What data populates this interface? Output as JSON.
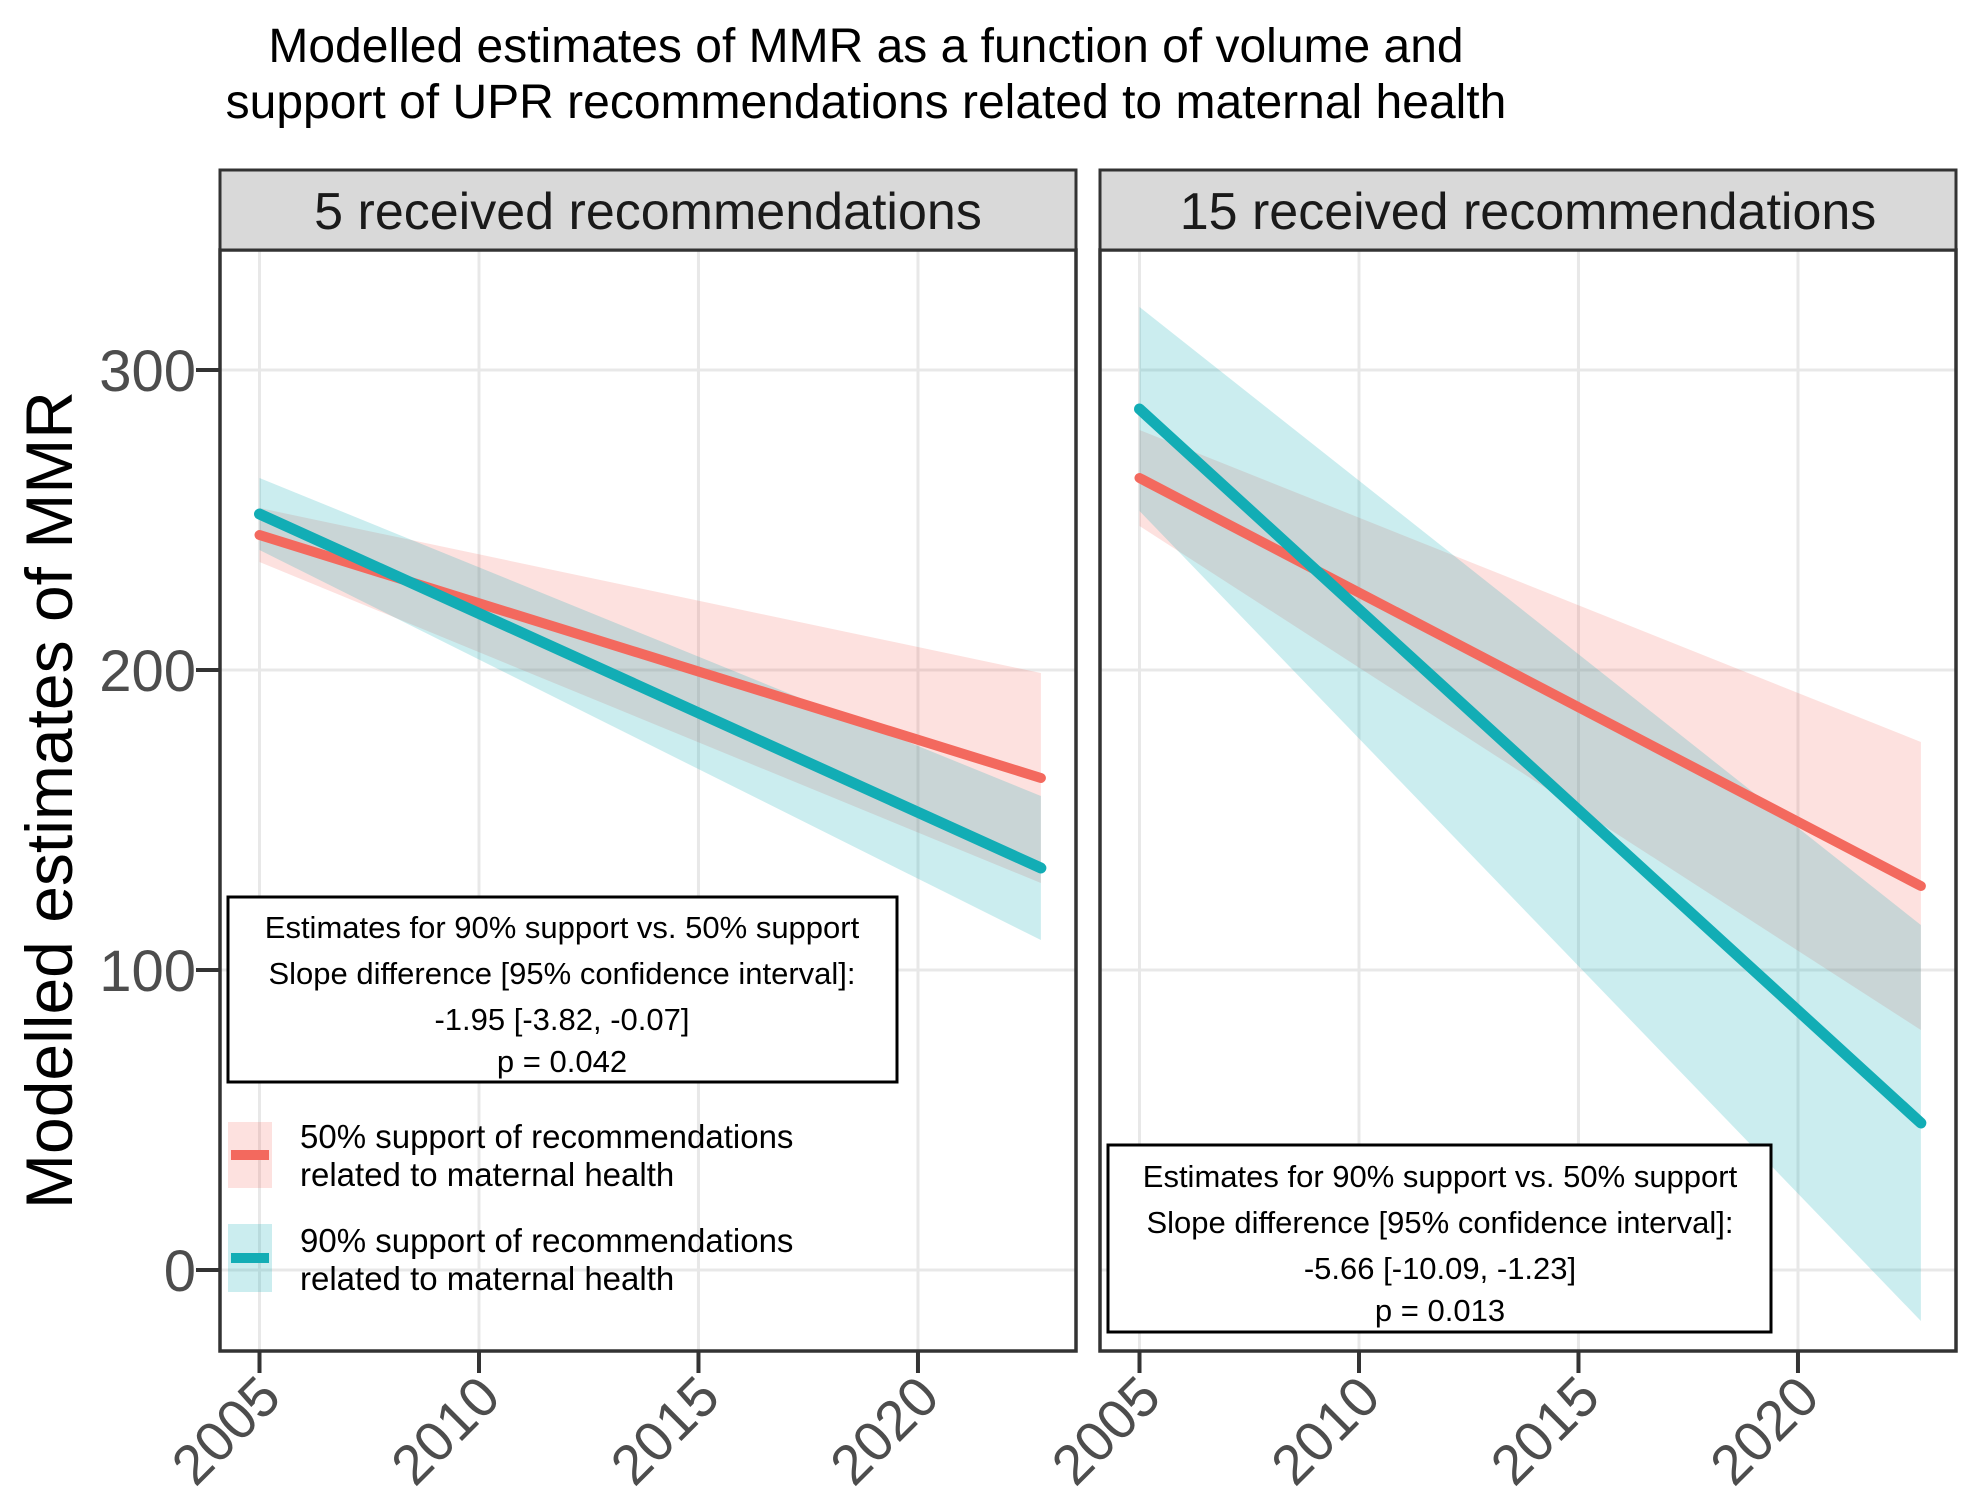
{
  "chart_data": {
    "type": "line",
    "title_line1": "Modelled estimates of MMR as a function of volume and",
    "title_line2": "support of UPR recommendations related to maternal health",
    "ylabel": "Modelled estimates of MMR",
    "xlabel": "",
    "x_tick_years": [
      2005,
      2010,
      2015,
      2020
    ],
    "x_tick_labels": [
      "2005",
      "2010",
      "2015",
      "2020"
    ],
    "y_tick_values": [
      0,
      100,
      200,
      300
    ],
    "y_tick_labels": [
      "0",
      "100",
      "200",
      "300"
    ],
    "x_domain": [
      2004.1,
      2023.6
    ],
    "y_domain": [
      -27,
      340
    ],
    "grid": true,
    "legend_position": "inside-bottom-left-of-first-panel",
    "theme": {
      "background": "#FFFFFF",
      "strip_bg": "#D9D9D9",
      "grid_color": "#E8E8E8",
      "panel_border": "#333333",
      "tick_color": "#333333",
      "axis_text_color": "#4D4D4D",
      "red": "#F3695E",
      "teal": "#12ADB5"
    },
    "panels": [
      {
        "strip_label": "5 received recommendations",
        "series": [
          {
            "name": "50% support of recommendations related to maternal health",
            "color": "#F3695E",
            "fill": "rgba(243,105,94,0.20)",
            "x": [
              2005,
              2022.8
            ],
            "y": [
              245,
              164
            ],
            "ci_upper": [
              254,
              199
            ],
            "ci_lower": [
              236,
              129
            ]
          },
          {
            "name": "90% support of recommendations related to maternal health",
            "color": "#12ADB5",
            "fill": "rgba(18,173,181,0.22)",
            "x": [
              2005,
              2022.8
            ],
            "y": [
              252,
              134
            ],
            "ci_upper": [
              264,
              158
            ],
            "ci_lower": [
              240,
              110
            ]
          }
        ],
        "annotation": {
          "lines": [
            "Estimates for 90% support vs. 50% support",
            "Slope difference [95% confidence interval]:",
            "-1.95 [-3.82, -0.07]",
            "p = 0.042"
          ]
        }
      },
      {
        "strip_label": "15 received recommendations",
        "series": [
          {
            "name": "50% support of recommendations related to maternal health",
            "color": "#F3695E",
            "fill": "rgba(243,105,94,0.20)",
            "x": [
              2005,
              2022.8
            ],
            "y": [
              264,
              128
            ],
            "ci_upper": [
              280,
              176
            ],
            "ci_lower": [
              248,
              80
            ]
          },
          {
            "name": "90% support of recommendations related to maternal health",
            "color": "#12ADB5",
            "fill": "rgba(18,173,181,0.22)",
            "x": [
              2005,
              2022.8
            ],
            "y": [
              287,
              49
            ],
            "ci_upper": [
              321,
              115
            ],
            "ci_lower": [
              253,
              -17
            ]
          }
        ],
        "annotation": {
          "lines": [
            "Estimates for 90% support vs. 50% support",
            "Slope difference [95% confidence interval]:",
            "-5.66 [-10.09, -1.23]",
            "p = 0.013"
          ]
        }
      }
    ],
    "legend": {
      "items": [
        {
          "label_line1": "50% support of recommendations",
          "label_line2": "related to maternal health",
          "color": "#F3695E",
          "fill": "rgba(243,105,94,0.20)"
        },
        {
          "label_line1": "90% support of recommendations",
          "label_line2": "related to maternal health",
          "color": "#12ADB5",
          "fill": "rgba(18,173,181,0.22)"
        }
      ]
    }
  }
}
